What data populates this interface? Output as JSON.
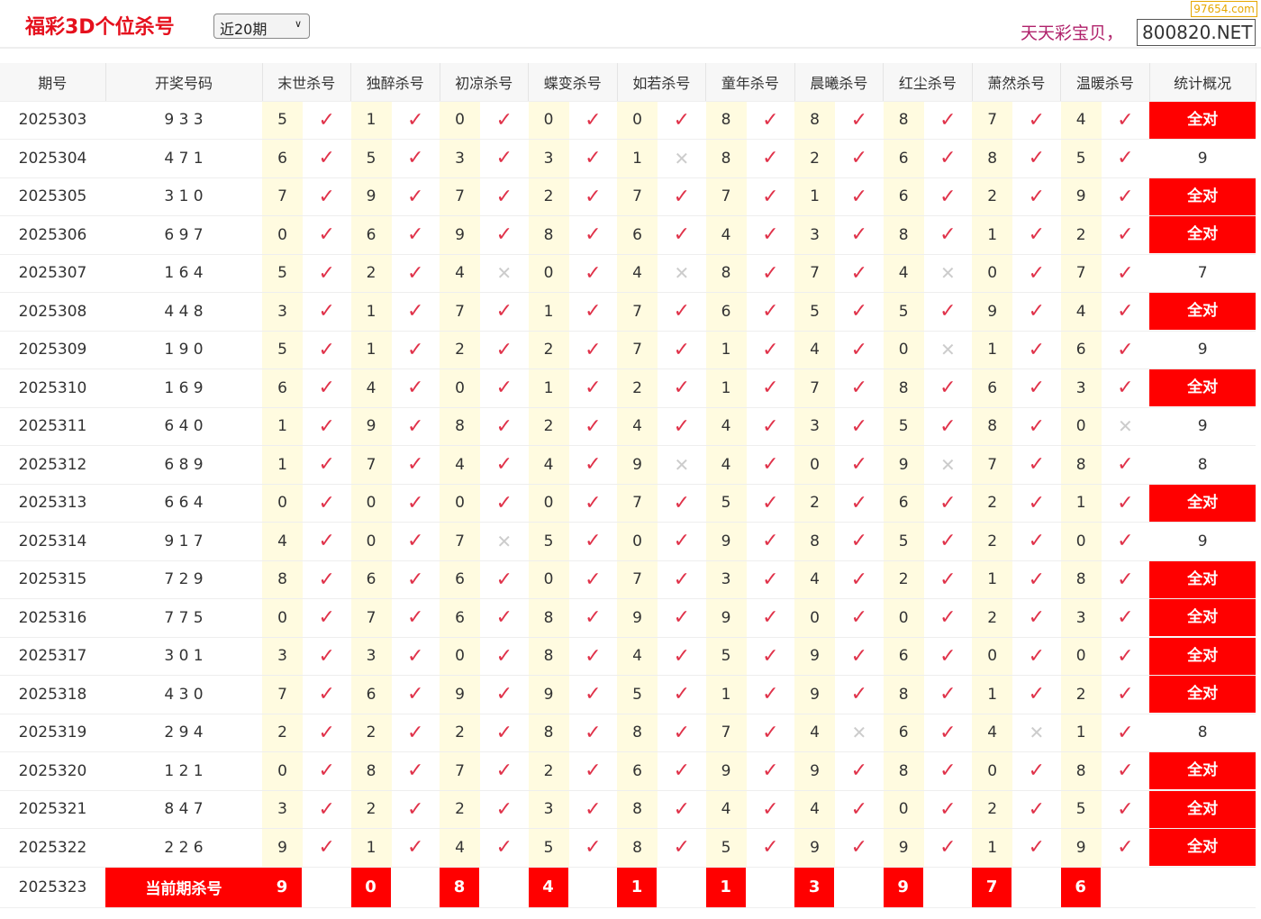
{
  "header": {
    "title": "福彩3D个位杀号",
    "period_select": "近20期",
    "promo": "天天彩宝贝，",
    "site_box": "800820.NET",
    "watermark": "97654.com"
  },
  "columns": [
    "期号",
    "开奖号码",
    "末世杀号",
    "独醉杀号",
    "初凉杀号",
    "蝶变杀号",
    "如若杀号",
    "童年杀号",
    "晨曦杀号",
    "红尘杀号",
    "萧然杀号",
    "温暖杀号",
    "统计概况"
  ],
  "colors": {
    "accent": "#ff0000",
    "hit": "#e0324a",
    "miss": "#cccccc",
    "kill_cell": "#fffbe0"
  },
  "all_correct_label": "全对",
  "rows": [
    {
      "period": "2025303",
      "draw": "9 3 3",
      "kills": [
        "5",
        "1",
        "0",
        "0",
        "0",
        "8",
        "8",
        "8",
        "7",
        "4"
      ],
      "marks": "1111111111",
      "stat": "全对"
    },
    {
      "period": "2025304",
      "draw": "4 7 1",
      "kills": [
        "6",
        "5",
        "3",
        "3",
        "1",
        "8",
        "2",
        "6",
        "8",
        "5"
      ],
      "marks": "1111011111",
      "stat": "9"
    },
    {
      "period": "2025305",
      "draw": "3 1 0",
      "kills": [
        "7",
        "9",
        "7",
        "2",
        "7",
        "7",
        "1",
        "6",
        "2",
        "9"
      ],
      "marks": "1111111111",
      "stat": "全对"
    },
    {
      "period": "2025306",
      "draw": "6 9 7",
      "kills": [
        "0",
        "6",
        "9",
        "8",
        "6",
        "4",
        "3",
        "8",
        "1",
        "2"
      ],
      "marks": "1111111111",
      "stat": "全对"
    },
    {
      "period": "2025307",
      "draw": "1 6 4",
      "kills": [
        "5",
        "2",
        "4",
        "0",
        "4",
        "8",
        "7",
        "4",
        "0",
        "7"
      ],
      "marks": "1101011011",
      "stat": "7"
    },
    {
      "period": "2025308",
      "draw": "4 4 8",
      "kills": [
        "3",
        "1",
        "7",
        "1",
        "7",
        "6",
        "5",
        "5",
        "9",
        "4"
      ],
      "marks": "1111111111",
      "stat": "全对"
    },
    {
      "period": "2025309",
      "draw": "1 9 0",
      "kills": [
        "5",
        "1",
        "2",
        "2",
        "7",
        "1",
        "4",
        "0",
        "1",
        "6"
      ],
      "marks": "1111111011",
      "stat": "9"
    },
    {
      "period": "2025310",
      "draw": "1 6 9",
      "kills": [
        "6",
        "4",
        "0",
        "1",
        "2",
        "1",
        "7",
        "8",
        "6",
        "3"
      ],
      "marks": "1111111111",
      "stat": "全对"
    },
    {
      "period": "2025311",
      "draw": "6 4 0",
      "kills": [
        "1",
        "9",
        "8",
        "2",
        "4",
        "4",
        "3",
        "5",
        "8",
        "0"
      ],
      "marks": "1111111110",
      "stat": "9"
    },
    {
      "period": "2025312",
      "draw": "6 8 9",
      "kills": [
        "1",
        "7",
        "4",
        "4",
        "9",
        "4",
        "0",
        "9",
        "7",
        "8"
      ],
      "marks": "1111011011",
      "stat": "8"
    },
    {
      "period": "2025313",
      "draw": "6 6 4",
      "kills": [
        "0",
        "0",
        "0",
        "0",
        "7",
        "5",
        "2",
        "6",
        "2",
        "1"
      ],
      "marks": "1111111111",
      "stat": "全对"
    },
    {
      "period": "2025314",
      "draw": "9 1 7",
      "kills": [
        "4",
        "0",
        "7",
        "5",
        "0",
        "9",
        "8",
        "5",
        "2",
        "0"
      ],
      "marks": "1101111111",
      "stat": "9"
    },
    {
      "period": "2025315",
      "draw": "7 2 9",
      "kills": [
        "8",
        "6",
        "6",
        "0",
        "7",
        "3",
        "4",
        "2",
        "1",
        "8"
      ],
      "marks": "1111111111",
      "stat": "全对"
    },
    {
      "period": "2025316",
      "draw": "7 7 5",
      "kills": [
        "0",
        "7",
        "6",
        "8",
        "9",
        "9",
        "0",
        "0",
        "2",
        "3"
      ],
      "marks": "1111111111",
      "stat": "全对"
    },
    {
      "period": "2025317",
      "draw": "3 0 1",
      "kills": [
        "3",
        "3",
        "0",
        "8",
        "4",
        "5",
        "9",
        "6",
        "0",
        "0"
      ],
      "marks": "1111111111",
      "stat": "全对"
    },
    {
      "period": "2025318",
      "draw": "4 3 0",
      "kills": [
        "7",
        "6",
        "9",
        "9",
        "5",
        "1",
        "9",
        "8",
        "1",
        "2"
      ],
      "marks": "1111111111",
      "stat": "全对"
    },
    {
      "period": "2025319",
      "draw": "2 9 4",
      "kills": [
        "2",
        "2",
        "2",
        "8",
        "8",
        "7",
        "4",
        "6",
        "4",
        "1"
      ],
      "marks": "1111110101",
      "stat": "8"
    },
    {
      "period": "2025320",
      "draw": "1 2 1",
      "kills": [
        "0",
        "8",
        "7",
        "2",
        "6",
        "9",
        "9",
        "8",
        "0",
        "8"
      ],
      "marks": "1111111111",
      "stat": "全对"
    },
    {
      "period": "2025321",
      "draw": "8 4 7",
      "kills": [
        "3",
        "2",
        "2",
        "3",
        "8",
        "4",
        "4",
        "0",
        "2",
        "5"
      ],
      "marks": "1111111111",
      "stat": "全对"
    },
    {
      "period": "2025322",
      "draw": "2 2 6",
      "kills": [
        "9",
        "1",
        "4",
        "5",
        "8",
        "5",
        "9",
        "9",
        "1",
        "9"
      ],
      "marks": "1111111111",
      "stat": "全对"
    }
  ],
  "current": {
    "period": "2025323",
    "label": "当前期杀号",
    "kills": [
      "9",
      "0",
      "8",
      "4",
      "1",
      "1",
      "3",
      "9",
      "7",
      "6"
    ]
  }
}
